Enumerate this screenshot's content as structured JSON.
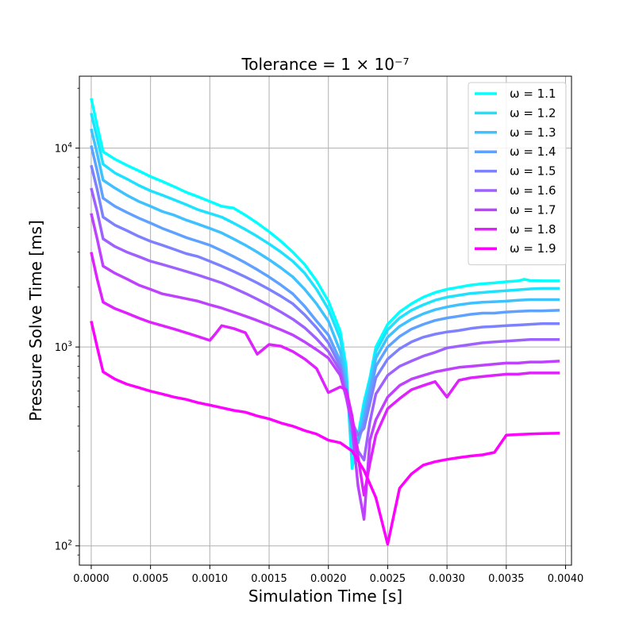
{
  "chart_data": {
    "type": "line",
    "title": "Tolerance = 1 × 10⁻⁷",
    "xlabel": "Simulation Time [s]",
    "ylabel": "Pressure Solve Time [ms]",
    "xlim": [
      -0.0001,
      0.00405
    ],
    "ylim": [
      80,
      23000
    ],
    "yscale": "log",
    "grid": true,
    "legend_position": "top-right",
    "x_ticks": [
      "0.0000",
      "0.0005",
      "0.0010",
      "0.0015",
      "0.0020",
      "0.0025",
      "0.0030",
      "0.0035",
      "0.0040"
    ],
    "x_tick_values": [
      0,
      0.0005,
      0.001,
      0.0015,
      0.002,
      0.0025,
      0.003,
      0.0035,
      0.004
    ],
    "y_ticks": [
      {
        "value": 100,
        "base": "10",
        "exp": "2"
      },
      {
        "value": 1000,
        "base": "10",
        "exp": "3"
      },
      {
        "value": 10000,
        "base": "10",
        "exp": "4"
      }
    ],
    "series": [
      {
        "name": "ω = 1.1",
        "color": "#00ffff",
        "x": [
          0,
          5e-05,
          0.0001,
          0.0002,
          0.0003,
          0.0004,
          0.0005,
          0.0006,
          0.0007,
          0.0008,
          0.0009,
          0.001,
          0.0011,
          0.0012,
          0.0013,
          0.0014,
          0.0015,
          0.0016,
          0.0017,
          0.0018,
          0.0019,
          0.002,
          0.0021,
          0.00215,
          0.0022,
          0.00225,
          0.0023,
          0.00235,
          0.0024,
          0.0025,
          0.0026,
          0.0027,
          0.0028,
          0.0029,
          0.003,
          0.0031,
          0.0032,
          0.0033,
          0.0034,
          0.0035,
          0.0036,
          0.00365,
          0.0037,
          0.0038,
          0.00395
        ],
        "y": [
          17800,
          13000,
          9600,
          8800,
          8200,
          7700,
          7200,
          6800,
          6400,
          6000,
          5700,
          5400,
          5100,
          5000,
          4600,
          4200,
          3800,
          3400,
          3000,
          2600,
          2150,
          1700,
          1200,
          800,
          245,
          360,
          530,
          700,
          1000,
          1300,
          1500,
          1650,
          1780,
          1880,
          1950,
          2000,
          2050,
          2080,
          2100,
          2130,
          2150,
          2190,
          2160,
          2150,
          2150
        ]
      },
      {
        "name": "ω = 1.2",
        "color": "#1ee1fe",
        "x": [
          0,
          5e-05,
          0.0001,
          0.0002,
          0.0003,
          0.0004,
          0.0005,
          0.0006,
          0.0007,
          0.0008,
          0.0009,
          0.001,
          0.0011,
          0.0012,
          0.0013,
          0.0014,
          0.0015,
          0.0016,
          0.0017,
          0.0018,
          0.0019,
          0.002,
          0.0021,
          0.00215,
          0.0022,
          0.00225,
          0.0023,
          0.00235,
          0.0024,
          0.0025,
          0.0026,
          0.0027,
          0.0028,
          0.0029,
          0.003,
          0.0031,
          0.0032,
          0.0033,
          0.0034,
          0.0035,
          0.0036,
          0.0037,
          0.0038,
          0.00395
        ],
        "y": [
          15000,
          11200,
          8300,
          7500,
          7000,
          6500,
          6100,
          5800,
          5500,
          5200,
          4900,
          4700,
          4500,
          4200,
          3900,
          3600,
          3300,
          3000,
          2700,
          2350,
          1950,
          1550,
          1100,
          750,
          290,
          340,
          500,
          680,
          950,
          1220,
          1400,
          1530,
          1630,
          1720,
          1780,
          1820,
          1860,
          1880,
          1900,
          1920,
          1940,
          1960,
          1970,
          1970
        ]
      },
      {
        "name": "ω = 1.3",
        "color": "#3ec1fe",
        "x": [
          0,
          5e-05,
          0.0001,
          0.0002,
          0.0003,
          0.0004,
          0.0005,
          0.0006,
          0.0007,
          0.0008,
          0.0009,
          0.001,
          0.0011,
          0.0012,
          0.0013,
          0.0014,
          0.0015,
          0.0016,
          0.0017,
          0.0018,
          0.0019,
          0.002,
          0.0021,
          0.00215,
          0.0022,
          0.00225,
          0.0023,
          0.00235,
          0.0024,
          0.0025,
          0.0026,
          0.0027,
          0.0028,
          0.0029,
          0.003,
          0.0031,
          0.0032,
          0.0033,
          0.0034,
          0.0035,
          0.0036,
          0.0037,
          0.0038,
          0.00395
        ],
        "y": [
          12500,
          9400,
          6900,
          6300,
          5800,
          5400,
          5100,
          4800,
          4600,
          4350,
          4150,
          3950,
          3750,
          3500,
          3250,
          3000,
          2750,
          2500,
          2250,
          1950,
          1650,
          1350,
          950,
          680,
          340,
          330,
          460,
          630,
          880,
          1120,
          1270,
          1380,
          1470,
          1540,
          1590,
          1630,
          1660,
          1680,
          1690,
          1700,
          1720,
          1730,
          1730,
          1730
        ]
      },
      {
        "name": "ω = 1.4",
        "color": "#5ea1fe",
        "x": [
          0,
          5e-05,
          0.0001,
          0.0002,
          0.0003,
          0.0004,
          0.0005,
          0.0006,
          0.0007,
          0.0008,
          0.0009,
          0.001,
          0.0011,
          0.0012,
          0.0013,
          0.0014,
          0.0015,
          0.0016,
          0.0017,
          0.0018,
          0.0019,
          0.002,
          0.0021,
          0.00215,
          0.0022,
          0.00225,
          0.0023,
          0.00235,
          0.0024,
          0.0025,
          0.0026,
          0.0027,
          0.0028,
          0.0029,
          0.003,
          0.0031,
          0.0032,
          0.0033,
          0.0034,
          0.0035,
          0.0036,
          0.0037,
          0.0038,
          0.00395
        ],
        "y": [
          10300,
          7700,
          5600,
          5100,
          4750,
          4450,
          4200,
          3950,
          3750,
          3550,
          3400,
          3250,
          3050,
          2850,
          2650,
          2450,
          2250,
          2050,
          1850,
          1600,
          1350,
          1150,
          850,
          620,
          370,
          330,
          420,
          580,
          800,
          1000,
          1130,
          1230,
          1300,
          1360,
          1400,
          1430,
          1460,
          1480,
          1480,
          1500,
          1510,
          1520,
          1520,
          1530
        ]
      },
      {
        "name": "ω = 1.5",
        "color": "#7e81fe",
        "x": [
          0,
          5e-05,
          0.0001,
          0.0002,
          0.0003,
          0.0004,
          0.0005,
          0.0006,
          0.0007,
          0.0008,
          0.0009,
          0.001,
          0.0011,
          0.0012,
          0.0013,
          0.0014,
          0.0015,
          0.0016,
          0.0017,
          0.0018,
          0.0019,
          0.002,
          0.0021,
          0.00215,
          0.0022,
          0.00225,
          0.0023,
          0.00235,
          0.0024,
          0.0025,
          0.0026,
          0.0027,
          0.0028,
          0.0029,
          0.003,
          0.0031,
          0.0032,
          0.0033,
          0.0034,
          0.0035,
          0.0036,
          0.0037,
          0.0038,
          0.00395
        ],
        "y": [
          8200,
          6200,
          4500,
          4100,
          3850,
          3600,
          3400,
          3250,
          3100,
          2950,
          2850,
          2700,
          2550,
          2400,
          2250,
          2100,
          1950,
          1800,
          1650,
          1450,
          1250,
          1050,
          800,
          580,
          420,
          360,
          390,
          520,
          700,
          870,
          980,
          1060,
          1120,
          1160,
          1190,
          1210,
          1240,
          1260,
          1270,
          1280,
          1290,
          1300,
          1310,
          1310
        ]
      },
      {
        "name": "ω = 1.6",
        "color": "#9e61fe",
        "x": [
          0,
          5e-05,
          0.0001,
          0.0002,
          0.0003,
          0.0004,
          0.0005,
          0.0006,
          0.0007,
          0.0008,
          0.0009,
          0.001,
          0.0011,
          0.0012,
          0.0013,
          0.0014,
          0.0015,
          0.0016,
          0.0017,
          0.0018,
          0.0019,
          0.002,
          0.0021,
          0.00215,
          0.0022,
          0.00225,
          0.0023,
          0.00235,
          0.0024,
          0.0025,
          0.0026,
          0.0027,
          0.0028,
          0.0029,
          0.003,
          0.0031,
          0.0032,
          0.0033,
          0.0034,
          0.0035,
          0.0036,
          0.0037,
          0.0038,
          0.00395
        ],
        "y": [
          6300,
          4800,
          3500,
          3200,
          3000,
          2850,
          2700,
          2600,
          2500,
          2400,
          2300,
          2200,
          2100,
          1980,
          1860,
          1740,
          1620,
          1500,
          1380,
          1250,
          1100,
          950,
          760,
          560,
          440,
          300,
          270,
          420,
          580,
          720,
          800,
          850,
          900,
          940,
          990,
          1010,
          1030,
          1050,
          1060,
          1070,
          1080,
          1090,
          1090,
          1090
        ]
      },
      {
        "name": "ω = 1.7",
        "color": "#be41fe",
        "x": [
          0,
          5e-05,
          0.0001,
          0.0002,
          0.0003,
          0.0004,
          0.0005,
          0.0006,
          0.0007,
          0.0008,
          0.0009,
          0.001,
          0.0011,
          0.0012,
          0.0013,
          0.0014,
          0.0015,
          0.0016,
          0.0017,
          0.0018,
          0.0019,
          0.002,
          0.0021,
          0.00215,
          0.0022,
          0.00225,
          0.0023,
          0.00235,
          0.0024,
          0.0025,
          0.0026,
          0.0027,
          0.0028,
          0.0029,
          0.003,
          0.0031,
          0.0032,
          0.0033,
          0.0034,
          0.0035,
          0.0036,
          0.0037,
          0.0038,
          0.00395
        ],
        "y": [
          4700,
          3500,
          2550,
          2350,
          2200,
          2050,
          1950,
          1850,
          1800,
          1750,
          1700,
          1630,
          1570,
          1500,
          1430,
          1360,
          1290,
          1220,
          1150,
          1060,
          970,
          880,
          720,
          560,
          400,
          200,
          136,
          340,
          430,
          560,
          640,
          690,
          720,
          750,
          770,
          790,
          800,
          810,
          820,
          830,
          830,
          840,
          840,
          850
        ]
      },
      {
        "name": "ω = 1.8",
        "color": "#de21fe",
        "x": [
          0,
          5e-05,
          0.0001,
          0.0002,
          0.0003,
          0.0004,
          0.0005,
          0.0006,
          0.0007,
          0.0008,
          0.0009,
          0.001,
          0.00105,
          0.0011,
          0.0012,
          0.0013,
          0.0014,
          0.0015,
          0.0016,
          0.0017,
          0.0018,
          0.0019,
          0.002,
          0.0021,
          0.00215,
          0.0022,
          0.00225,
          0.0023,
          0.00235,
          0.0024,
          0.0025,
          0.0026,
          0.0027,
          0.0028,
          0.0029,
          0.003,
          0.0031,
          0.0032,
          0.0033,
          0.0034,
          0.0035,
          0.0036,
          0.0037,
          0.0038,
          0.00395
        ],
        "y": [
          3000,
          2200,
          1680,
          1560,
          1480,
          1400,
          1330,
          1280,
          1230,
          1180,
          1130,
          1080,
          1170,
          1280,
          1240,
          1180,
          920,
          1030,
          1010,
          950,
          870,
          780,
          590,
          630,
          610,
          450,
          280,
          180,
          260,
          360,
          490,
          550,
          610,
          640,
          670,
          560,
          680,
          700,
          710,
          720,
          730,
          730,
          740,
          740,
          740
        ]
      },
      {
        "name": "ω = 1.9",
        "color": "#fe01fe",
        "x": [
          0,
          5e-05,
          0.0001,
          0.0002,
          0.0003,
          0.0004,
          0.0005,
          0.0006,
          0.0007,
          0.0008,
          0.0009,
          0.001,
          0.0011,
          0.0012,
          0.0013,
          0.0014,
          0.0015,
          0.0016,
          0.0017,
          0.0018,
          0.0019,
          0.002,
          0.0021,
          0.0022,
          0.0023,
          0.0024,
          0.0025,
          0.0026,
          0.0027,
          0.0028,
          0.0029,
          0.003,
          0.0031,
          0.0032,
          0.0033,
          0.0034,
          0.0035,
          0.0036,
          0.0037,
          0.0038,
          0.00395
        ],
        "y": [
          1350,
          1000,
          750,
          690,
          650,
          625,
          600,
          580,
          560,
          545,
          525,
          510,
          495,
          480,
          470,
          450,
          435,
          415,
          400,
          380,
          365,
          340,
          330,
          300,
          240,
          175,
          102,
          195,
          230,
          255,
          265,
          272,
          278,
          283,
          287,
          295,
          360,
          363,
          365,
          367,
          369
        ]
      }
    ]
  }
}
